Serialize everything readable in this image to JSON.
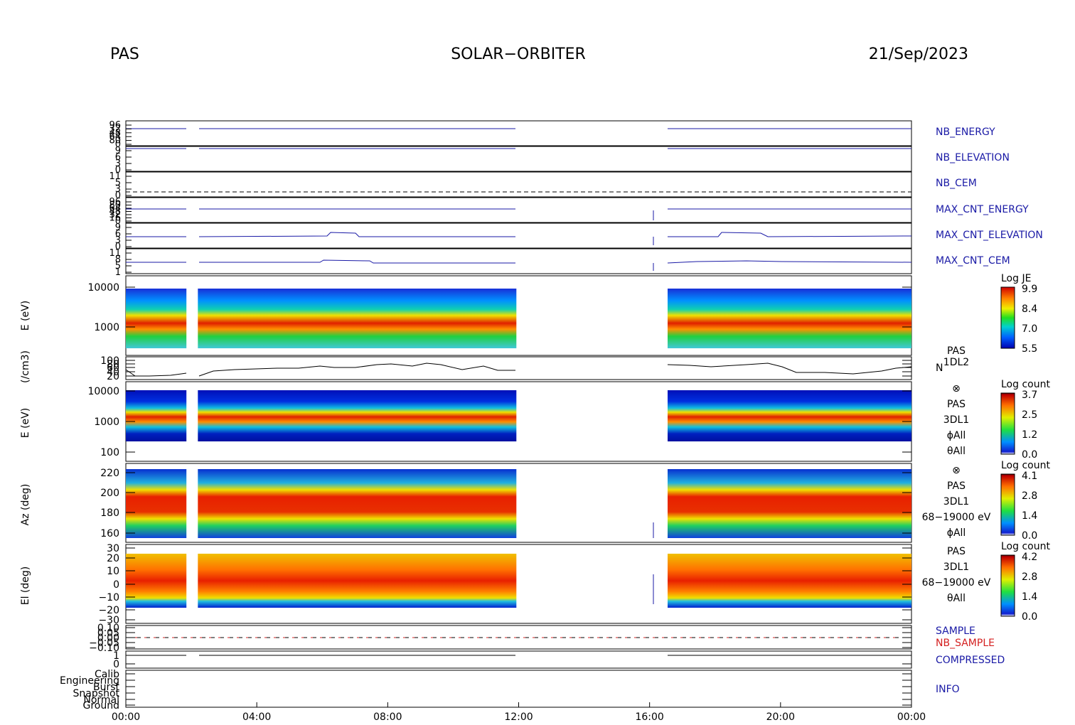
{
  "header": {
    "left": "PAS",
    "center": "SOLAR−ORBITER",
    "right": "21/Sep/2023"
  },
  "colors": {
    "trace_blue": "#1a1aa6",
    "sample_red": "#d42020",
    "frame": "#000000"
  },
  "chart_data": {
    "type": "stacked time-series panels",
    "x_axis": {
      "range_hours": [
        0,
        24
      ],
      "ticks": [
        {
          "h": 0,
          "label": "00:00"
        },
        {
          "h": 4,
          "label": "04:00"
        },
        {
          "h": 8,
          "label": "08:00"
        },
        {
          "h": 12,
          "label": "12:00"
        },
        {
          "h": 16,
          "label": "16:00"
        },
        {
          "h": 20,
          "label": "20:00"
        },
        {
          "h": 24,
          "label": "00:00"
        }
      ]
    },
    "data_intervals_hours": [
      [
        0.0,
        1.85
      ],
      [
        2.2,
        11.93
      ],
      [
        16.55,
        24.0
      ]
    ],
    "panels": [
      {
        "id": "nb-energy",
        "name": "NB_ENERGY",
        "ticks": [
          "96",
          "32",
          "48",
          "64",
          "80",
          "0"
        ]
      },
      {
        "id": "nb-elevation",
        "name": "NB_ELEVATION",
        "ticks": [
          "9",
          "6",
          "3",
          "0"
        ]
      },
      {
        "id": "nb-cem",
        "name": "NB_CEM",
        "ticks": [
          "11",
          "5",
          "3",
          "0"
        ]
      },
      {
        "id": "max-cnt-energy",
        "name": "MAX_CNT_ENERGY",
        "ticks": [
          "96",
          "80",
          "64",
          "48",
          "32",
          "16",
          "0"
        ]
      },
      {
        "id": "max-cnt-elevation",
        "name": "MAX_CNT_ELEVATION",
        "ticks": [
          "9",
          "6",
          "3",
          "0"
        ]
      },
      {
        "id": "max-cnt-cem",
        "name": "MAX_CNT_CEM",
        "ticks": [
          "11",
          "8",
          "5",
          "1"
        ]
      },
      {
        "id": "energy-spectrogram-je",
        "ylabel": "E (eV)",
        "yticks": [
          "10000",
          "1000"
        ],
        "colorbar": {
          "title": "Log JE",
          "ticks": [
            "9.9",
            "8.4",
            "7.0",
            "5.5"
          ]
        }
      },
      {
        "id": "density",
        "ylabel": "(/cm3)",
        "yticks": [
          "100",
          "80",
          "60",
          "40",
          "20"
        ],
        "labels": [
          "PAS",
          "1DL2",
          "N"
        ]
      },
      {
        "id": "energy-spectrogram-counts",
        "ylabel": "E (eV)",
        "yticks": [
          "10000",
          "1000",
          "100"
        ],
        "labels": [
          "⊗",
          "PAS",
          "3DL1",
          "ϕAll",
          "θAll"
        ],
        "colorbar": {
          "title": "Log count",
          "ticks": [
            "3.7",
            "2.5",
            "1.2",
            "0.0"
          ]
        }
      },
      {
        "id": "azimuth-spectrogram",
        "ylabel": "Az (deg)",
        "yticks": [
          "220",
          "200",
          "180",
          "160"
        ],
        "labels": [
          "⊗",
          "PAS",
          "3DL1",
          "68−19000 eV",
          "ϕAll"
        ],
        "colorbar": {
          "title": "Log count",
          "ticks": [
            "4.1",
            "2.8",
            "1.4",
            "0.0"
          ]
        }
      },
      {
        "id": "elevation-spectrogram",
        "ylabel": "El (deg)",
        "yticks": [
          "30",
          "20",
          "10",
          "0",
          "−10",
          "−20",
          "−30"
        ],
        "labels": [
          "PAS",
          "3DL1",
          "68−19000 eV",
          "θAll"
        ],
        "colorbar": {
          "title": "Log count",
          "ticks": [
            "4.2",
            "2.8",
            "1.4",
            "0.0"
          ]
        }
      },
      {
        "id": "sample",
        "names": [
          "SAMPLE",
          "NB_SAMPLE"
        ],
        "yticks": [
          "0.10",
          "0.05",
          "0.00",
          "−0.05",
          "−0.10"
        ]
      },
      {
        "id": "compressed",
        "name": "COMPRESSED",
        "yticks": [
          "1",
          "0"
        ]
      },
      {
        "id": "info",
        "name": "INFO",
        "yticks": [
          "Calib",
          "Engineering",
          "Burst",
          "Snapshot",
          "Normal",
          "Ground"
        ]
      }
    ]
  }
}
